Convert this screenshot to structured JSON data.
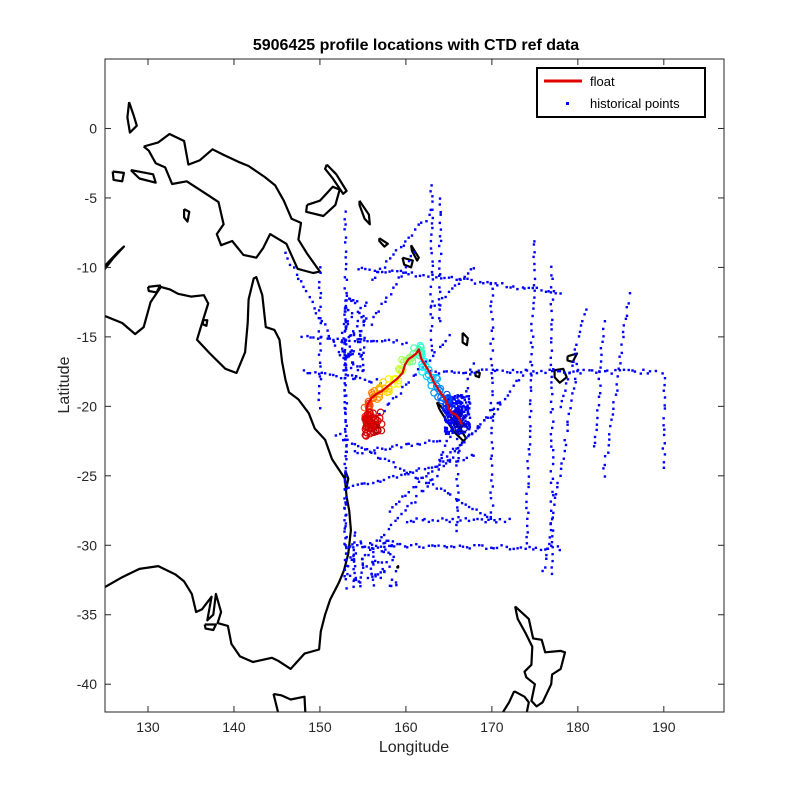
{
  "chart_data": {
    "type": "scatter",
    "title": "5906425 profile locations with CTD ref data",
    "xlabel": "Longitude",
    "ylabel": "Latitude",
    "xlim": [
      125,
      197
    ],
    "ylim": [
      -42,
      5
    ],
    "xticks": [
      130,
      140,
      150,
      160,
      170,
      180,
      190
    ],
    "yticks": [
      0,
      -5,
      -10,
      -15,
      -20,
      -25,
      -30,
      -35,
      -40
    ],
    "grid": false,
    "legend": {
      "placement": "top-right",
      "entries": [
        {
          "label": "float",
          "color": "#e00000",
          "style": "line"
        },
        {
          "label": "historical points",
          "color": "#0000ff",
          "style": "dot"
        }
      ]
    },
    "colors": {
      "float": "#e00000",
      "historical": "#0000ff",
      "coast": "#000000",
      "axes": "#262626"
    },
    "series": [
      {
        "name": "float",
        "x": [
          166.5,
          166.2,
          165.8,
          165.4,
          165.0,
          164.8,
          164.5,
          164.0,
          163.6,
          163.2,
          162.8,
          162.3,
          161.8,
          161.5,
          161.2,
          160.8,
          160.3,
          159.9,
          159.6,
          159.0,
          158.4,
          157.8,
          157.2,
          156.6,
          156.0,
          155.6,
          155.4,
          155.6,
          155.8,
          156.1,
          156.3,
          156.5
        ],
        "y": [
          -21.3,
          -20.9,
          -20.6,
          -20.5,
          -20.2,
          -19.8,
          -19.4,
          -19.0,
          -18.6,
          -18.2,
          -17.6,
          -17.1,
          -16.6,
          -15.9,
          -16.2,
          -16.4,
          -16.6,
          -17.0,
          -17.6,
          -18.0,
          -18.3,
          -18.6,
          -18.9,
          -19.1,
          -19.4,
          -19.8,
          -20.2,
          -20.6,
          -21.0,
          -21.3,
          -21.4,
          -21.6
        ]
      }
    ],
    "historical_tracks": [
      {
        "from": [
          153,
          -6
        ],
        "to": [
          153,
          -33
        ]
      },
      {
        "from": [
          154.5,
          -10
        ],
        "to": [
          178,
          -11.8
        ]
      },
      {
        "from": [
          153,
          -30
        ],
        "to": [
          178,
          -30.2
        ]
      },
      {
        "from": [
          153,
          -12
        ],
        "to": [
          153,
          -30
        ]
      },
      {
        "from": [
          148,
          -17.5
        ],
        "to": [
          157,
          -18.2
        ]
      },
      {
        "from": [
          152,
          -22
        ],
        "to": [
          170,
          -28
        ]
      },
      {
        "from": [
          155,
          -31
        ],
        "to": [
          174,
          -17.5
        ]
      },
      {
        "from": [
          153,
          -26
        ],
        "to": [
          168,
          -23.5
        ]
      },
      {
        "from": [
          163,
          -17.5
        ],
        "to": [
          189,
          -17.5
        ]
      },
      {
        "from": [
          164,
          -24
        ],
        "to": [
          168,
          -17
        ]
      },
      {
        "from": [
          166,
          -22
        ],
        "to": [
          166,
          -29
        ]
      },
      {
        "from": [
          170,
          -11
        ],
        "to": [
          170,
          -28
        ]
      },
      {
        "from": [
          175,
          -8
        ],
        "to": [
          174,
          -30
        ]
      },
      {
        "from": [
          177,
          -10
        ],
        "to": [
          177,
          -32
        ]
      },
      {
        "from": [
          180,
          -17
        ],
        "to": [
          176,
          -32
        ]
      },
      {
        "from": [
          181,
          -13
        ],
        "to": [
          178,
          -20
        ]
      },
      {
        "from": [
          183,
          -14
        ],
        "to": [
          182,
          -23
        ]
      },
      {
        "from": [
          186,
          -12
        ],
        "to": [
          183,
          -25
        ]
      },
      {
        "from": [
          190,
          -17.5
        ],
        "to": [
          190,
          -24.5
        ]
      },
      {
        "from": [
          150,
          -10
        ],
        "to": [
          150,
          -20
        ]
      },
      {
        "from": [
          146,
          -9
        ],
        "to": [
          153,
          -17
        ]
      },
      {
        "from": [
          156,
          -11
        ],
        "to": [
          163,
          -6
        ]
      },
      {
        "from": [
          161,
          -9
        ],
        "to": [
          156,
          -14
        ]
      },
      {
        "from": [
          163,
          -4
        ],
        "to": [
          163,
          -16
        ]
      },
      {
        "from": [
          164,
          -5
        ],
        "to": [
          164,
          -14
        ]
      },
      {
        "from": [
          168,
          -10
        ],
        "to": [
          163,
          -13
        ]
      },
      {
        "from": [
          148,
          -15
        ],
        "to": [
          160,
          -15.4
        ]
      },
      {
        "from": [
          157,
          -20.5
        ],
        "to": [
          165,
          -15
        ]
      },
      {
        "from": [
          154,
          -23.3
        ],
        "to": [
          164,
          -22.5
        ]
      },
      {
        "from": [
          158,
          -27.5
        ],
        "to": [
          171,
          -20
        ]
      },
      {
        "from": [
          160,
          -28.2
        ],
        "to": [
          172,
          -28.2
        ]
      },
      {
        "from": [
          154,
          -33
        ],
        "to": [
          154,
          -29
        ]
      }
    ]
  }
}
